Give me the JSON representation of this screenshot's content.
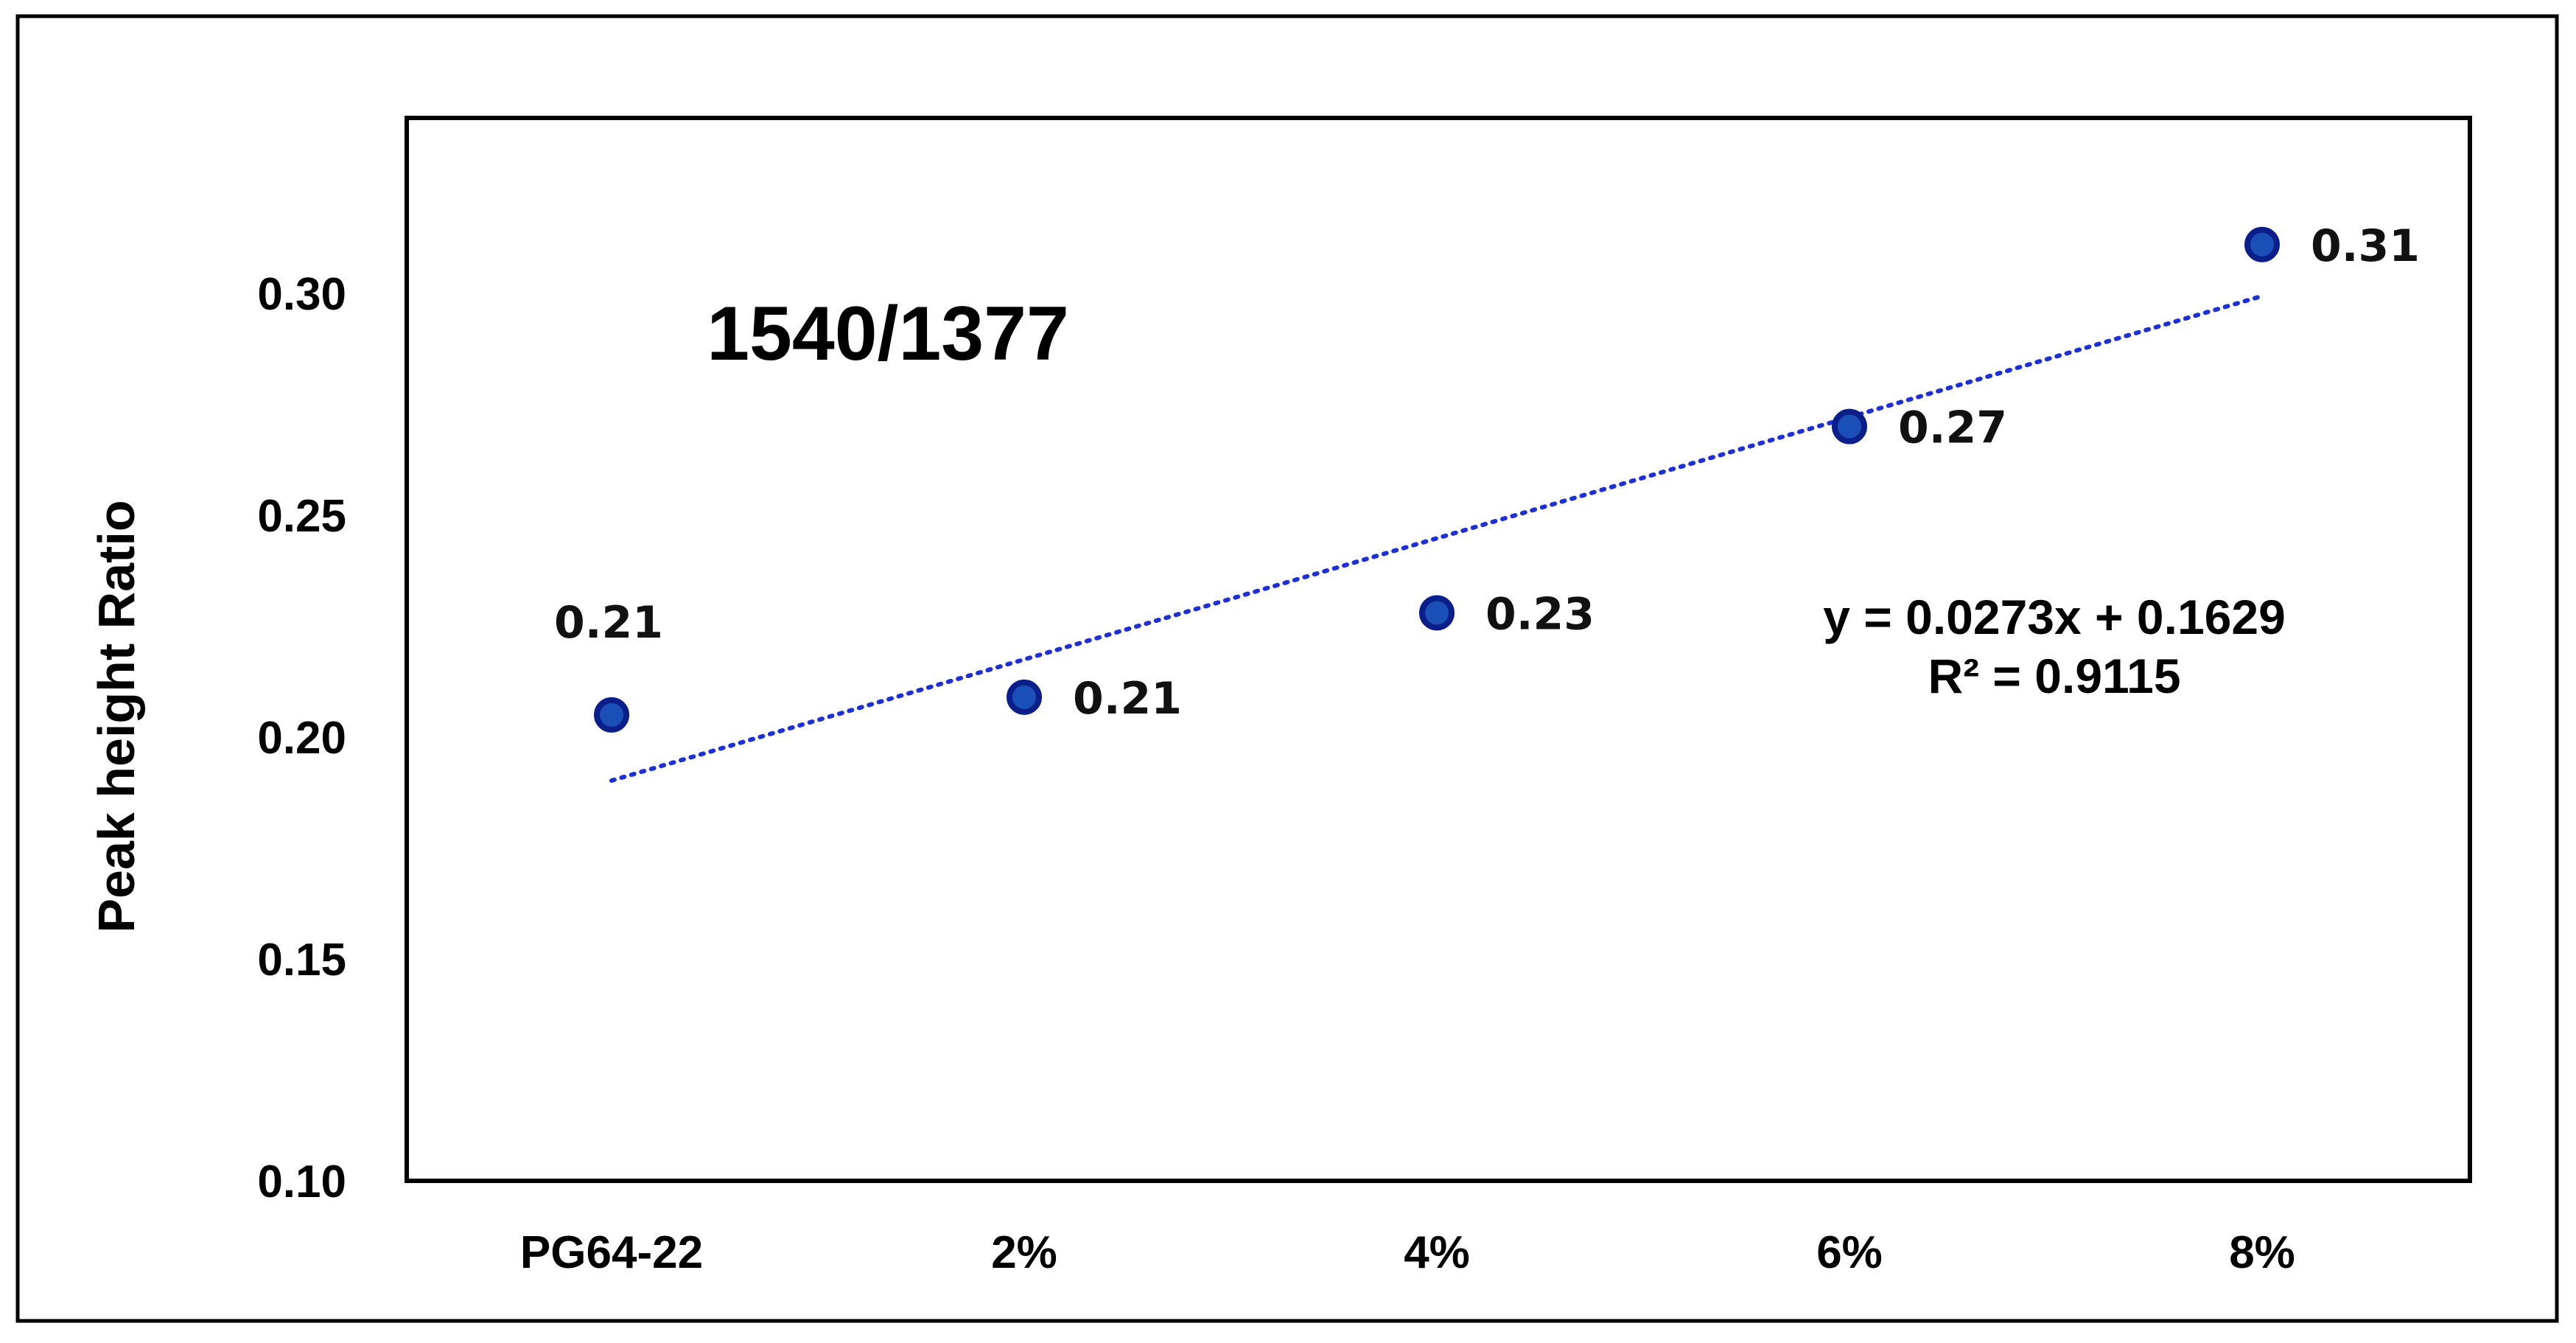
{
  "chart_data": {
    "type": "scatter",
    "title": "1540/1377",
    "xlabel": "",
    "ylabel": "Peak height Ratio",
    "categories": [
      "PG64-22",
      "2%",
      "4%",
      "6%",
      "8%"
    ],
    "values": [
      0.205,
      0.209,
      0.228,
      0.27,
      0.311
    ],
    "data_labels": [
      "0.21",
      "0.21",
      "0.23",
      "0.27",
      "0.31"
    ],
    "ylim": [
      0.1,
      0.3
    ],
    "yticks": [
      "0.10",
      "0.15",
      "0.20",
      "0.25",
      "0.30"
    ],
    "y_tick_values": [
      0.1,
      0.15,
      0.2,
      0.25,
      0.3
    ],
    "trendline": {
      "type": "linear",
      "slope": 0.0273,
      "intercept": 0.1629,
      "equation": "y = 0.0273x + 0.1629",
      "r_squared": "R² = 0.9115",
      "style": "dotted"
    },
    "grid": false,
    "legend": "none",
    "marker_color": "#1a4fb8",
    "marker_outline": "#0a1f8a",
    "trendline_color": "#1d2fd6"
  }
}
